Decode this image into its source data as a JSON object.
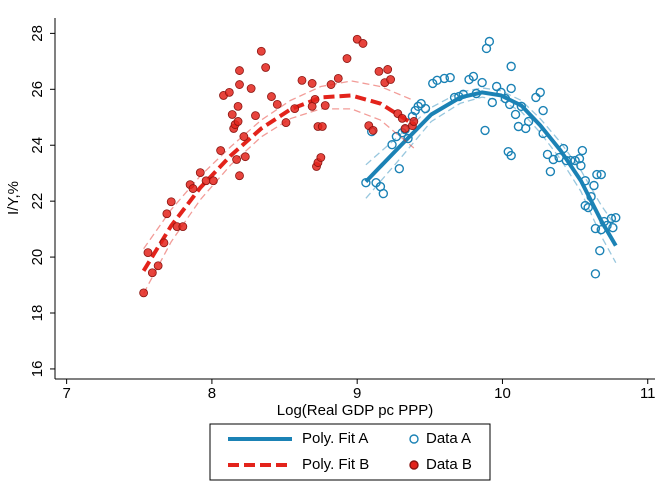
{
  "chart_data": {
    "type": "scatter",
    "x_label": "Log(Real GDP pc PPP)",
    "y_label": "I/Y,%",
    "xlim": [
      6.92,
      11.05
    ],
    "ylim": [
      15.64,
      28.55
    ],
    "xticks": [
      7,
      8,
      9,
      10,
      11
    ],
    "yticks": [
      16,
      18,
      20,
      22,
      24,
      26,
      28
    ],
    "grid": false,
    "legend": "bottom",
    "series": [
      {
        "name": "Poly. Fit A",
        "type": "line",
        "style": "solid",
        "color": "#1b82b5",
        "x": [
          9.06,
          9.3,
          9.51,
          9.71,
          9.86,
          9.99,
          10.13,
          10.26,
          10.4,
          10.54,
          10.68,
          10.78
        ],
        "values": [
          22.7,
          23.99,
          25.1,
          25.71,
          25.89,
          25.78,
          25.42,
          24.71,
          23.81,
          22.73,
          21.3,
          20.41
        ],
        "ci_upper": [
          23.3,
          24.4,
          25.35,
          25.9,
          26.05,
          25.95,
          25.6,
          24.95,
          24.1,
          23.1,
          21.85,
          21.1
        ],
        "ci_lower": [
          22.1,
          23.55,
          24.85,
          25.5,
          25.72,
          25.6,
          25.2,
          24.45,
          23.5,
          22.35,
          20.75,
          19.8
        ]
      },
      {
        "name": "Data A",
        "type": "scatter",
        "marker": "hollow",
        "color": "#1b82b5",
        "x": [
          9.06,
          9.1,
          9.13,
          9.16,
          9.18,
          9.24,
          9.27,
          9.29,
          9.31,
          9.33,
          9.35,
          9.38,
          9.4,
          9.42,
          9.44,
          9.47,
          9.52,
          9.55,
          9.6,
          9.64,
          9.67,
          9.7,
          9.73,
          9.77,
          9.8,
          9.82,
          9.86,
          9.88,
          9.89,
          9.91,
          9.93,
          9.96,
          9.99,
          10.02,
          10.04,
          10.05,
          10.06,
          10.06,
          10.06,
          10.09,
          10.11,
          10.13,
          10.16,
          10.18,
          10.23,
          10.26,
          10.28,
          10.28,
          10.31,
          10.33,
          10.35,
          10.39,
          10.42,
          10.44,
          10.47,
          10.5,
          10.53,
          10.55,
          10.54,
          10.57,
          10.57,
          10.59,
          10.61,
          10.63,
          10.64,
          10.65,
          10.68,
          10.67,
          10.64,
          10.68,
          10.7,
          10.72,
          10.75,
          10.76,
          10.78
        ],
        "values": [
          22.66,
          24.49,
          22.66,
          22.52,
          22.27,
          24.02,
          24.31,
          23.16,
          24.45,
          24.56,
          24.24,
          25.03,
          25.24,
          25.39,
          25.49,
          25.31,
          26.21,
          26.32,
          26.39,
          26.42,
          25.71,
          25.74,
          25.82,
          26.35,
          26.46,
          25.85,
          26.24,
          24.53,
          27.46,
          27.71,
          25.53,
          26.1,
          25.89,
          25.67,
          23.77,
          25.46,
          23.63,
          26.03,
          26.82,
          25.1,
          24.67,
          25.39,
          24.6,
          24.85,
          25.71,
          25.89,
          25.24,
          24.42,
          23.67,
          23.06,
          23.49,
          23.56,
          23.88,
          23.45,
          23.45,
          23.45,
          23.52,
          23.81,
          23.27,
          22.73,
          21.84,
          21.77,
          22.16,
          22.56,
          21.02,
          22.95,
          22.95,
          20.23,
          19.4,
          20.98,
          21.27,
          21.13,
          21.38,
          21.05,
          21.41
        ]
      },
      {
        "name": "Poly. Fit B",
        "type": "line",
        "style": "dashed",
        "color": "#e3231b",
        "x": [
          7.53,
          7.72,
          7.92,
          8.13,
          8.34,
          8.54,
          8.75,
          8.96,
          9.16,
          9.39
        ],
        "values": [
          19.51,
          21.12,
          22.48,
          23.63,
          24.6,
          25.28,
          25.71,
          25.78,
          25.49,
          24.74
        ],
        "ci_upper": [
          20.3,
          21.7,
          22.9,
          23.95,
          24.9,
          25.6,
          26.1,
          26.3,
          26.1,
          25.6
        ],
        "ci_lower": [
          18.7,
          20.55,
          22.05,
          23.3,
          24.3,
          24.95,
          25.3,
          25.3,
          24.9,
          23.9
        ]
      },
      {
        "name": "Data B",
        "type": "scatter",
        "marker": "filled",
        "color": "#e3231b",
        "x": [
          7.53,
          7.56,
          7.59,
          7.63,
          7.67,
          7.69,
          7.72,
          7.76,
          7.8,
          7.85,
          7.87,
          7.92,
          7.96,
          8.01,
          8.06,
          8.08,
          8.12,
          8.14,
          8.15,
          8.16,
          8.18,
          8.18,
          8.17,
          8.19,
          8.19,
          8.19,
          8.22,
          8.23,
          8.27,
          8.3,
          8.34,
          8.37,
          8.41,
          8.45,
          8.51,
          8.57,
          8.62,
          8.69,
          8.69,
          8.71,
          8.72,
          8.73,
          8.75,
          8.73,
          8.76,
          8.78,
          8.82,
          8.87,
          8.93,
          9.0,
          9.04,
          9.08,
          9.11,
          9.15,
          9.19,
          9.21,
          9.23,
          9.28,
          9.31,
          9.33,
          9.38,
          9.39
        ],
        "values": [
          18.72,
          20.16,
          19.44,
          19.69,
          20.51,
          21.55,
          21.98,
          21.09,
          21.09,
          22.59,
          22.45,
          23.02,
          22.73,
          22.73,
          23.81,
          25.78,
          25.89,
          25.1,
          24.6,
          24.74,
          24.85,
          25.39,
          23.49,
          22.91,
          26.17,
          26.67,
          24.31,
          23.59,
          26.03,
          25.06,
          27.36,
          26.78,
          25.74,
          25.46,
          24.81,
          25.31,
          26.32,
          25.39,
          26.21,
          25.64,
          23.24,
          23.38,
          23.56,
          24.67,
          24.67,
          25.42,
          26.17,
          26.39,
          27.1,
          27.79,
          27.64,
          24.7,
          24.53,
          26.64,
          26.24,
          26.71,
          26.35,
          25.13,
          24.96,
          24.6,
          24.7,
          24.85
        ]
      }
    ]
  }
}
